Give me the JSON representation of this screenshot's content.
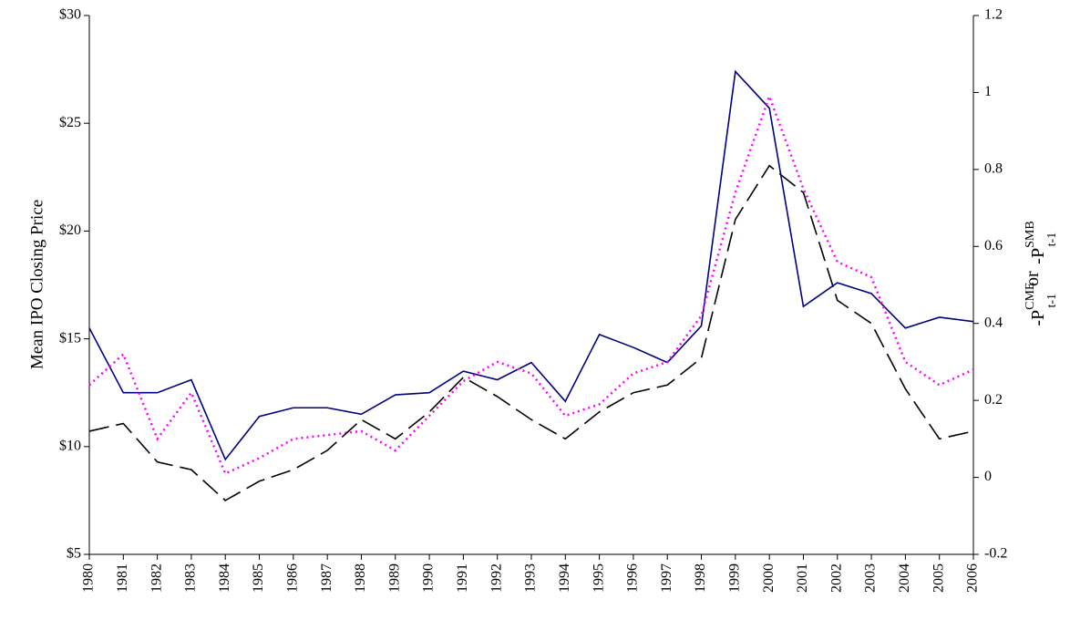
{
  "chart_data": {
    "type": "line",
    "ylabel": "Mean IPO Closing Price",
    "y2label": [
      "-P",
      "CME",
      "t-1",
      "or",
      "-P",
      "SMB",
      "t-1"
    ],
    "categories": [
      "1980",
      "1981",
      "1982",
      "1983",
      "1984",
      "1985",
      "1986",
      "1987",
      "1988",
      "1989",
      "1990",
      "1991",
      "1992",
      "1993",
      "1994",
      "1995",
      "1996",
      "1997",
      "1998",
      "1999",
      "2000",
      "2001",
      "2002",
      "2003",
      "2004",
      "2005",
      "2006"
    ],
    "series": [
      {
        "color": "#000080",
        "dash": "solid",
        "values": [
          15.5,
          12.5,
          12.5,
          13.1,
          9.4,
          11.4,
          11.8,
          11.8,
          11.5,
          12.4,
          12.5,
          13.5,
          13.1,
          13.9,
          12.1,
          15.2,
          14.6,
          13.9,
          15.6,
          27.4,
          25.7,
          16.5,
          17.6,
          17.1,
          15.5,
          16.0,
          15.8
        ]
      },
      {
        "color": "#ff00ff",
        "dash": "dotted",
        "axis": "y2",
        "values": [
          0.24,
          0.32,
          0.1,
          0.22,
          0.01,
          0.05,
          0.1,
          0.11,
          0.12,
          0.07,
          0.16,
          0.25,
          0.3,
          0.27,
          0.16,
          0.19,
          0.27,
          0.3,
          0.42,
          0.74,
          0.99,
          0.75,
          0.56,
          0.52,
          0.3,
          0.24,
          0.28
        ]
      },
      {
        "color": "#000000",
        "dash": "dashed",
        "axis": "y2",
        "values": [
          0.12,
          0.14,
          0.04,
          0.02,
          -0.06,
          -0.01,
          0.02,
          0.07,
          0.15,
          0.1,
          0.17,
          0.26,
          0.21,
          0.15,
          0.1,
          0.17,
          0.22,
          0.24,
          0.31,
          0.67,
          0.81,
          0.74,
          0.46,
          0.4,
          0.23,
          0.1,
          0.12
        ]
      }
    ],
    "ylim": [
      5,
      30
    ],
    "yticks": [
      {
        "value": 5,
        "label": "$5"
      },
      {
        "value": 10,
        "label": "$10"
      },
      {
        "value": 15,
        "label": "$15"
      },
      {
        "value": 20,
        "label": "$20"
      },
      {
        "value": 25,
        "label": "$25"
      },
      {
        "value": 30,
        "label": "$30"
      }
    ],
    "y2lim": [
      -0.2,
      1.2
    ],
    "y2ticks": [
      -0.2,
      0,
      0.2,
      0.4,
      0.6,
      0.8,
      1,
      1.2
    ],
    "grid": false
  }
}
